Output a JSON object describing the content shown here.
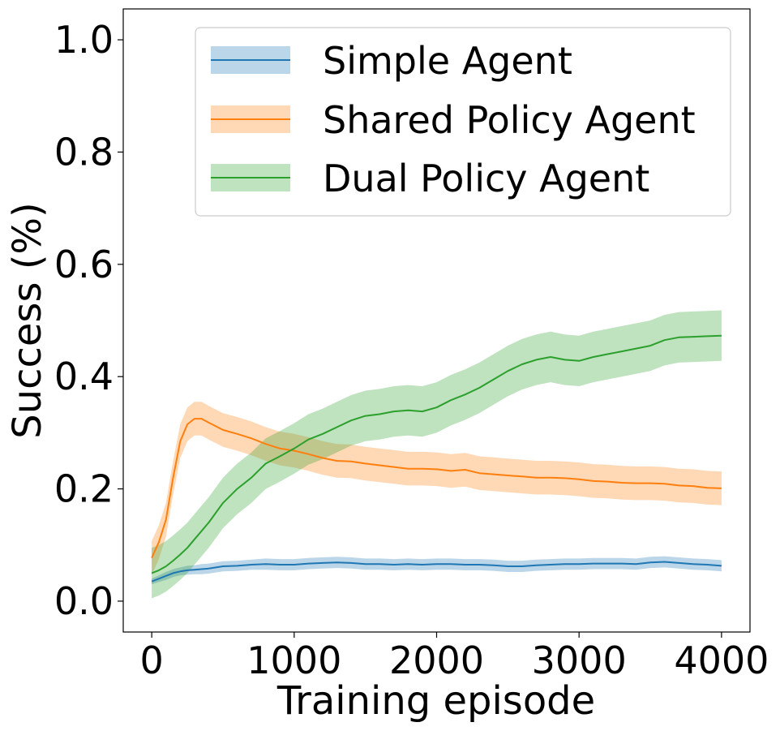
{
  "chart_data": {
    "type": "line",
    "title": "",
    "xlabel": "Training episode",
    "ylabel": "Success (%)",
    "xlim": [
      -200,
      4200
    ],
    "ylim": [
      -0.055,
      1.055
    ],
    "x_ticks": [
      0,
      1000,
      2000,
      3000,
      4000
    ],
    "y_ticks": [
      0.0,
      0.2,
      0.4,
      0.6,
      0.8,
      1.0
    ],
    "x_tick_labels": [
      "0",
      "1000",
      "2000",
      "3000",
      "4000"
    ],
    "y_tick_labels": [
      "0.0",
      "0.2",
      "0.4",
      "0.6",
      "0.8",
      "1.0"
    ],
    "grid": false,
    "legend_position": "top-right",
    "x": [
      0,
      50,
      100,
      150,
      200,
      250,
      300,
      350,
      400,
      500,
      600,
      700,
      800,
      900,
      1000,
      1100,
      1200,
      1300,
      1400,
      1500,
      1600,
      1700,
      1800,
      1900,
      2000,
      2100,
      2200,
      2300,
      2400,
      2500,
      2600,
      2700,
      2800,
      2900,
      3000,
      3100,
      3200,
      3300,
      3400,
      3500,
      3600,
      3700,
      3800,
      3900,
      4000
    ],
    "series": [
      {
        "name": "Simple Agent",
        "color": "#1f77b4",
        "band_color": "#1f77b4",
        "values": [
          0.035,
          0.04,
          0.045,
          0.05,
          0.053,
          0.055,
          0.056,
          0.057,
          0.058,
          0.062,
          0.063,
          0.065,
          0.066,
          0.065,
          0.065,
          0.067,
          0.068,
          0.069,
          0.068,
          0.066,
          0.066,
          0.065,
          0.066,
          0.065,
          0.066,
          0.066,
          0.065,
          0.065,
          0.064,
          0.062,
          0.062,
          0.064,
          0.065,
          0.066,
          0.066,
          0.067,
          0.067,
          0.067,
          0.066,
          0.069,
          0.07,
          0.068,
          0.066,
          0.065,
          0.063
        ],
        "lower": [
          0.03,
          0.034,
          0.038,
          0.043,
          0.046,
          0.047,
          0.048,
          0.048,
          0.049,
          0.053,
          0.054,
          0.056,
          0.056,
          0.055,
          0.055,
          0.057,
          0.058,
          0.059,
          0.058,
          0.056,
          0.056,
          0.055,
          0.056,
          0.055,
          0.056,
          0.056,
          0.055,
          0.055,
          0.054,
          0.052,
          0.052,
          0.054,
          0.055,
          0.056,
          0.056,
          0.057,
          0.057,
          0.057,
          0.056,
          0.059,
          0.06,
          0.058,
          0.056,
          0.055,
          0.053
        ],
        "upper": [
          0.04,
          0.046,
          0.052,
          0.057,
          0.06,
          0.063,
          0.064,
          0.066,
          0.067,
          0.071,
          0.072,
          0.074,
          0.076,
          0.075,
          0.075,
          0.077,
          0.078,
          0.079,
          0.078,
          0.076,
          0.076,
          0.075,
          0.076,
          0.075,
          0.076,
          0.076,
          0.075,
          0.075,
          0.074,
          0.072,
          0.072,
          0.074,
          0.075,
          0.076,
          0.076,
          0.077,
          0.077,
          0.077,
          0.076,
          0.079,
          0.08,
          0.078,
          0.076,
          0.075,
          0.073
        ]
      },
      {
        "name": "Shared Policy Agent",
        "color": "#ff7f0e",
        "band_color": "#ff7f0e",
        "values": [
          0.077,
          0.105,
          0.145,
          0.22,
          0.285,
          0.315,
          0.325,
          0.325,
          0.318,
          0.305,
          0.298,
          0.29,
          0.28,
          0.272,
          0.268,
          0.262,
          0.255,
          0.25,
          0.249,
          0.245,
          0.242,
          0.239,
          0.236,
          0.236,
          0.235,
          0.232,
          0.234,
          0.228,
          0.226,
          0.224,
          0.222,
          0.22,
          0.22,
          0.219,
          0.217,
          0.214,
          0.213,
          0.211,
          0.21,
          0.21,
          0.209,
          0.206,
          0.205,
          0.202,
          0.201
        ]
      },
      {
        "name": "Dual Policy Agent",
        "color": "#2ca02c",
        "band_color": "#2ca02c",
        "values": [
          0.05,
          0.055,
          0.062,
          0.072,
          0.083,
          0.095,
          0.11,
          0.125,
          0.14,
          0.175,
          0.2,
          0.22,
          0.245,
          0.258,
          0.272,
          0.288,
          0.298,
          0.31,
          0.322,
          0.33,
          0.333,
          0.338,
          0.34,
          0.338,
          0.345,
          0.358,
          0.368,
          0.38,
          0.395,
          0.41,
          0.422,
          0.43,
          0.435,
          0.43,
          0.428,
          0.435,
          0.44,
          0.445,
          0.45,
          0.455,
          0.465,
          0.47,
          0.471,
          0.472,
          0.473
        ]
      }
    ]
  }
}
